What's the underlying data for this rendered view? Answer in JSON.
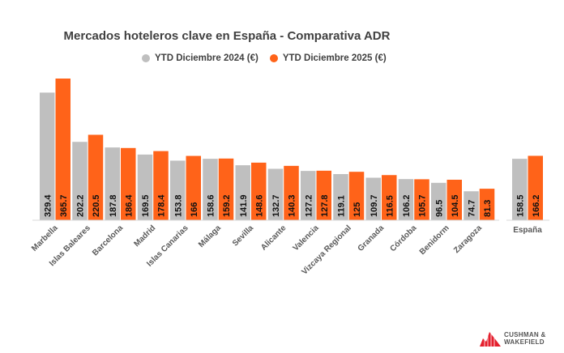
{
  "chart_data": {
    "type": "bar",
    "title": "Mercados hoteleros clave en España - Comparativa ADR",
    "categories": [
      "Marbella",
      "Islas Baleares",
      "Barcelona",
      "Madrid",
      "Islas Canarias",
      "Málaga",
      "Sevilla",
      "Alicante",
      "Valencia",
      "Vizcaya Regional",
      "Granada",
      "Córdoba",
      "Benidorm",
      "Zaragoza"
    ],
    "series": [
      {
        "name": "YTD Diciembre 2024 (€)",
        "color": "#bfbfbf",
        "values": [
          329.4,
          202.2,
          187.8,
          169.5,
          153.8,
          158.6,
          141.9,
          132.7,
          127.2,
          119.1,
          109.7,
          106.2,
          96.5,
          74.7
        ]
      },
      {
        "name": "YTD Diciembre 2025 (€)",
        "color": "#ff6319",
        "values": [
          365.7,
          220.5,
          186.4,
          178.4,
          166,
          159.2,
          148.6,
          140.3,
          127.8,
          125,
          116.5,
          105.7,
          104.5,
          81.3
        ]
      }
    ],
    "total": {
      "category": "España",
      "values": [
        158.5,
        166.2
      ]
    },
    "legend_position": "top",
    "grid": false,
    "ylim": [
      0,
      370
    ]
  },
  "logo": {
    "line1": "CUSHMAN &",
    "line2": "WAKEFIELD"
  }
}
